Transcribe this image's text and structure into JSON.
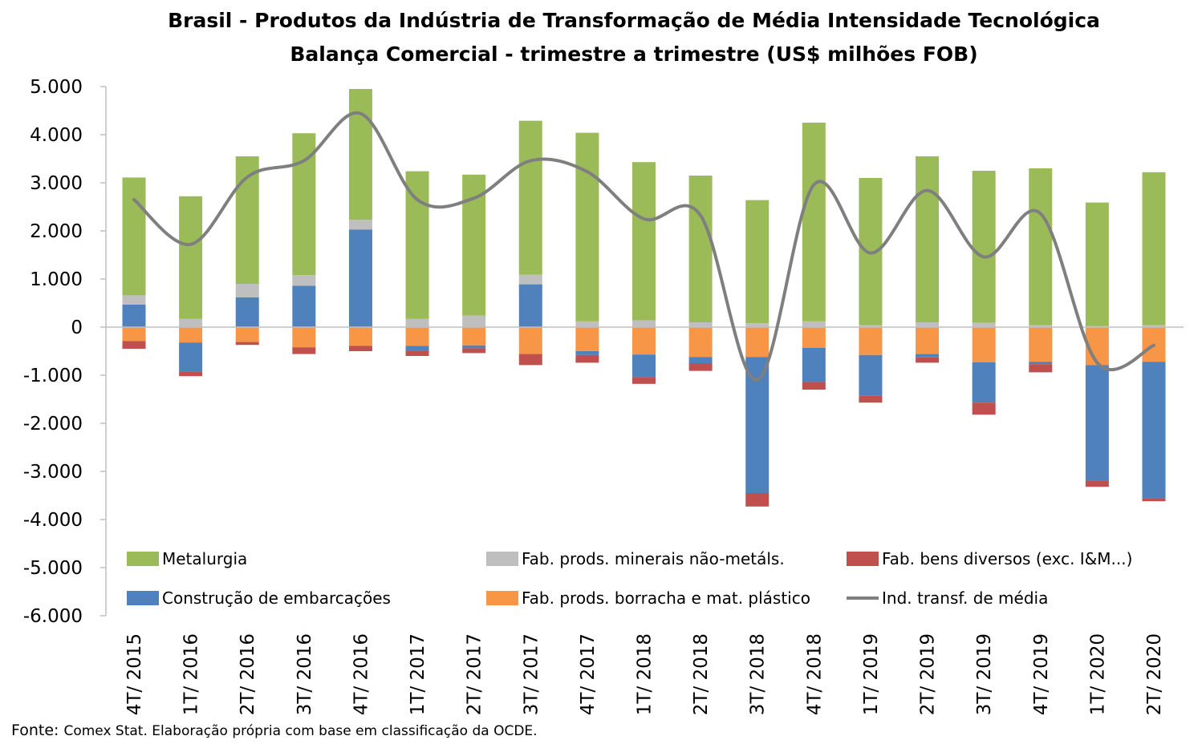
{
  "chart_data": {
    "type": "bar",
    "stacked": true,
    "title": "Brasil - Produtos da Indústria de Transformação de Média Intensidade Tecnológica",
    "subtitle": "Balança Comercial - trimestre a trimestre (US$ milhões FOB)",
    "xlabel": "",
    "ylabel": "",
    "ylim": [
      -6000,
      5000
    ],
    "yticks": [
      5000,
      4000,
      3000,
      2000,
      1000,
      0,
      -1000,
      -2000,
      -3000,
      -4000,
      -5000,
      -6000
    ],
    "ytick_labels": [
      "5.000",
      "4.000",
      "3.000",
      "2.000",
      "1.000",
      "0",
      "-1.000",
      "-2.000",
      "-3.000",
      "-4.000",
      "-5.000",
      "-6.000"
    ],
    "categories": [
      "4T/ 2015",
      "1T/ 2016",
      "2T/ 2016",
      "3T/ 2016",
      "4T/ 2016",
      "1T/ 2017",
      "2T/ 2017",
      "3T/ 2017",
      "4T/ 2017",
      "1T/ 2018",
      "2T/ 2018",
      "3T/ 2018",
      "4T/ 2018",
      "1T/ 2019",
      "2T/ 2019",
      "3T/ 2019",
      "4T/ 2019",
      "1T/ 2020",
      "2T/ 2020"
    ],
    "grid": false,
    "legend_position": "bottom-inside",
    "series": [
      {
        "name": "Metalurgia",
        "color": "#9BBB59",
        "values": [
          2450,
          2550,
          2650,
          2950,
          2720,
          3070,
          2930,
          3200,
          3920,
          3290,
          3050,
          2560,
          4130,
          3060,
          3450,
          3160,
          3260,
          2570,
          3180
        ]
      },
      {
        "name": "Fab. prods. minerais não-metáls.",
        "color": "#BFBFBF",
        "values": [
          190,
          170,
          280,
          220,
          200,
          170,
          240,
          200,
          120,
          140,
          100,
          80,
          120,
          40,
          100,
          90,
          40,
          20,
          40
        ]
      },
      {
        "name": "Fab. bens diversos (exc. I&M...)",
        "color": "#C0504D",
        "values": [
          -160,
          -100,
          -60,
          -140,
          -110,
          -110,
          -100,
          -230,
          -160,
          -140,
          -160,
          -280,
          -160,
          -140,
          -110,
          -250,
          -170,
          -130,
          -60
        ]
      },
      {
        "name": "Construção de embarcações",
        "color": "#4F81BD",
        "values": [
          470,
          -600,
          620,
          860,
          2030,
          -100,
          -60,
          890,
          -80,
          -470,
          -130,
          -2830,
          -710,
          -850,
          -70,
          -840,
          -50,
          -2400,
          -2840
        ]
      },
      {
        "name": "Fab. prods. borracha e mat. plástico",
        "color": "#F79646",
        "values": [
          -290,
          -320,
          -310,
          -420,
          -390,
          -390,
          -380,
          -560,
          -500,
          -570,
          -620,
          -620,
          -430,
          -580,
          -560,
          -730,
          -720,
          -790,
          -720
        ]
      }
    ],
    "line_series": {
      "name": "Ind. transf. de média",
      "color": "#7F7F7F",
      "values": [
        2650,
        1720,
        3120,
        3460,
        4440,
        2650,
        2680,
        3460,
        3230,
        2250,
        2320,
        -1100,
        2960,
        1540,
        2840,
        1460,
        2360,
        -740,
        -380
      ]
    },
    "source": {
      "lead": "Fonte:",
      "text": "Comex Stat. Elaboração própria com base em classificação da OCDE."
    }
  }
}
